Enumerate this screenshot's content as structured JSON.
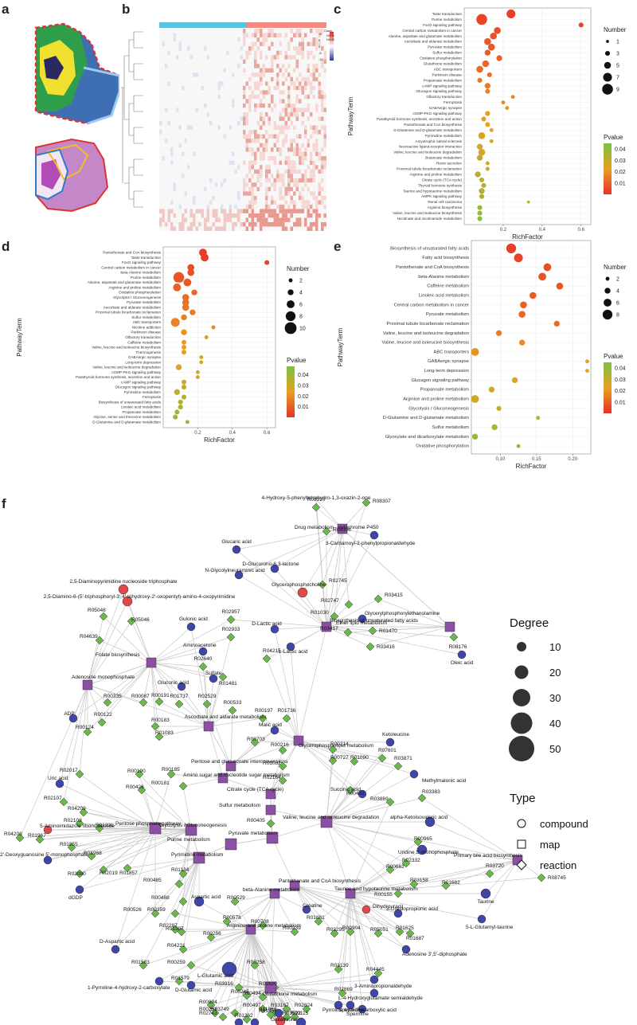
{
  "panels": {
    "a": "a",
    "b": "b",
    "c": "c",
    "d": "d",
    "e": "e",
    "f": "f"
  },
  "heatmap": {
    "legend_title": "Class",
    "legend_items": [
      {
        "label": "ND-A",
        "color": "#5bc0de"
      },
      {
        "label": "ND-B",
        "color": "#f28b82"
      }
    ],
    "scale_ticks": [
      "10",
      "5",
      "0",
      "-5",
      "-10"
    ]
  },
  "chart_data": [
    {
      "id": "c",
      "type": "scatter",
      "xlabel": "RichFactor",
      "ylabel": "PathwayTerm",
      "xlim": [
        0,
        0.65
      ],
      "xticks": [
        "0.2",
        "0.4",
        "0.6"
      ],
      "xtick_values": [
        0.2,
        0.4,
        0.6
      ],
      "pvalue_range": [
        0.0,
        0.045
      ],
      "categories": [
        "Taste transduction",
        "Purine metabolism",
        "FoxO signaling pathway",
        "Central carbon metabolism in cancer",
        "Alanine, aspartate and glutamate metabolism",
        "Ascorbate and aldarate metabolism",
        "Pyruvate metabolism",
        "Sulfur metabolism",
        "Oxidative phosphorylation",
        "Glutathione metabolism",
        "ABC transporters",
        "Parkinson disease",
        "Propanoate metabolism",
        "cAMP signaling pathway",
        "Glucagon signaling pathway",
        "Olfactory transduction",
        "Ferroptosis",
        "GABAergic synapse",
        "cGMP-PKG signaling pathway",
        "Parathyroid hormone synthesis, secretion and action",
        "Pantothenate and CoA biosynthesis",
        "D-Glutamine and D-glutamate metabolism",
        "Pyrimidine metabolism",
        "Amyotrophic lateral sclerosis",
        "Neuroactive ligand-receptor interaction",
        "Valine, leucine and isoleucine degradation",
        "Butanoate metabolism",
        "Renin secretion",
        "Proximal tubule bicarbonate reclamation",
        "Arginine and proline metabolism",
        "Citrate cycle (TCA cycle)",
        "Thyroid hormone synthesis",
        "Taurine and hypotaurine metabolism",
        "AMPK signaling pathway",
        "Renal cell carcinoma",
        "Arginine biosynthesis",
        "Valine, leucine and isoleucine biosynthesis",
        "Nicotinate and nicotinamide metabolism"
      ],
      "x": [
        0.24,
        0.09,
        0.6,
        0.17,
        0.15,
        0.12,
        0.14,
        0.12,
        0.18,
        0.11,
        0.08,
        0.13,
        0.08,
        0.12,
        0.12,
        0.25,
        0.2,
        0.22,
        0.12,
        0.1,
        0.12,
        0.14,
        0.09,
        0.14,
        0.08,
        0.09,
        0.08,
        0.12,
        0.12,
        0.07,
        0.09,
        0.1,
        0.09,
        0.09,
        0.33,
        0.08,
        0.08,
        0.08
      ],
      "number": [
        7,
        9,
        3,
        5,
        5,
        5,
        5,
        4,
        4,
        5,
        5,
        3,
        3,
        4,
        3,
        2,
        2,
        2,
        3,
        3,
        3,
        2,
        5,
        2,
        4,
        5,
        4,
        2,
        2,
        4,
        3,
        3,
        4,
        3,
        1,
        3,
        3,
        3
      ],
      "pvalue": [
        0.003,
        0.004,
        0.004,
        0.006,
        0.007,
        0.008,
        0.008,
        0.009,
        0.01,
        0.011,
        0.012,
        0.012,
        0.014,
        0.015,
        0.016,
        0.017,
        0.018,
        0.02,
        0.021,
        0.022,
        0.023,
        0.024,
        0.025,
        0.026,
        0.027,
        0.028,
        0.029,
        0.029,
        0.03,
        0.031,
        0.032,
        0.033,
        0.034,
        0.035,
        0.036,
        0.038,
        0.04,
        0.042
      ],
      "size_legend": {
        "title": "Number",
        "values": [
          1,
          3,
          5,
          7,
          9
        ]
      },
      "color_legend": {
        "title": "Pvalue",
        "ticks": [
          0.04,
          0.03,
          0.02,
          0.01
        ],
        "tick_labels": [
          "0.04",
          "0.03",
          "0.02",
          "0.01"
        ]
      }
    },
    {
      "id": "d",
      "type": "scatter",
      "xlabel": "RichFactor",
      "ylabel": "PathwayTerm",
      "xlim": [
        0,
        0.65
      ],
      "xticks": [
        "0.2",
        "0.4",
        "0.6"
      ],
      "xtick_values": [
        0.2,
        0.4,
        0.6
      ],
      "pvalue_range": [
        0.0,
        0.048
      ],
      "categories": [
        "Pantothenate and CoA biosynthesis",
        "Taste transduction",
        "FoxO signaling pathway",
        "Central carbon metabolism in cancer",
        "beta-Alanine metabolism",
        "Purine metabolism",
        "Alanine, aspartate and glutamate metabolism",
        "Arginine and proline metabolism",
        "Oxidative phosphorylation",
        "Glycolysis / Gluconeogenesis",
        "Pyruvate metabolism",
        "Ascorbate and aldarate metabolism",
        "Proximal tubule bicarbonate reclamation",
        "Sulfur metabolism",
        "ABC transporters",
        "Nicotine addiction",
        "Parkinson disease",
        "Olfactory transduction",
        "Caffeine metabolism",
        "Valine, leucine and isoleucine biosynthesis",
        "Thermogenesis",
        "GABAergic synapse",
        "Long-term depression",
        "Valine, leucine and isoleucine degradation",
        "cGMP-PKG signaling pathway",
        "Parathyroid hormone synthesis, secretion and action",
        "cAMP signaling pathway",
        "Glucagon signaling pathway",
        "Pyrimidine metabolism",
        "Ferroptosis",
        "Biosynthesis of unsaturated fatty acids",
        "Linoleic acid metabolism",
        "Propanoate metabolism",
        "Glycine, serine and threonine metabolism",
        "D-Glutamine and D-glutamate metabolism"
      ],
      "x": [
        0.23,
        0.24,
        0.6,
        0.16,
        0.16,
        0.09,
        0.14,
        0.08,
        0.18,
        0.13,
        0.13,
        0.13,
        0.17,
        0.12,
        0.07,
        0.29,
        0.12,
        0.25,
        0.12,
        0.12,
        0.12,
        0.22,
        0.22,
        0.09,
        0.2,
        0.2,
        0.12,
        0.12,
        0.08,
        0.12,
        0.1,
        0.1,
        0.08,
        0.07,
        0.14
      ],
      "number": [
        6,
        6,
        3,
        5,
        5,
        9,
        6,
        6,
        4,
        5,
        5,
        5,
        4,
        4,
        7,
        2,
        4,
        2,
        3,
        3,
        3,
        2,
        2,
        4,
        2,
        2,
        3,
        3,
        4,
        3,
        3,
        3,
        3,
        3,
        2
      ],
      "pvalue": [
        0.002,
        0.003,
        0.004,
        0.006,
        0.007,
        0.008,
        0.009,
        0.01,
        0.012,
        0.013,
        0.014,
        0.015,
        0.016,
        0.017,
        0.018,
        0.019,
        0.021,
        0.022,
        0.023,
        0.024,
        0.025,
        0.026,
        0.027,
        0.028,
        0.029,
        0.03,
        0.031,
        0.032,
        0.034,
        0.035,
        0.036,
        0.038,
        0.04,
        0.042,
        0.044
      ],
      "size_legend": {
        "title": "Number",
        "values": [
          2,
          4,
          6,
          8,
          10
        ]
      },
      "color_legend": {
        "title": "Pvalue",
        "ticks": [
          0.04,
          0.03,
          0.02,
          0.01
        ],
        "tick_labels": [
          "0.04",
          "0.03",
          "0.02",
          "0.01"
        ]
      }
    },
    {
      "id": "e",
      "type": "scatter",
      "xlabel": "RichFactor",
      "ylabel": "PathwayTerm",
      "xlim": [
        0.06,
        0.225
      ],
      "xticks": [
        "0.10",
        "0.15",
        "0.20"
      ],
      "xtick_values": [
        0.1,
        0.15,
        0.2
      ],
      "pvalue_range": [
        0.0,
        0.045
      ],
      "categories": [
        "Biosynthesis of unsaturated fatty acids",
        "Fatty acid biosynthesis",
        "Pantothenate and CoA biosynthesis",
        "beta-Alanine metabolism",
        "Caffeine metabolism",
        "Linoleic acid metabolism",
        "Central carbon metabolism in cancer",
        "Pyruvate metabolism",
        "Proximal tubule bicarbonate reclamation",
        "Valine, leucine and isoleucine degradation",
        "Valine, leucine and isoleucine biosynthesis",
        "ABC transporters",
        "GABAergic synapse",
        "Long-term depression",
        "Glucagon signaling pathway",
        "Propanoate metabolism",
        "Arginine and proline metabolism",
        "Glycolysis / Gluconeogenesis",
        "D-Glutamine and D-glutamate metabolism",
        "Sulfur metabolism",
        "Glyoxylate and dicarboxylate metabolism",
        "Oxidative phosphorylation"
      ],
      "x": [
        0.115,
        0.125,
        0.165,
        0.158,
        0.182,
        0.145,
        0.132,
        0.13,
        0.178,
        0.098,
        0.13,
        0.065,
        0.22,
        0.22,
        0.12,
        0.088,
        0.065,
        0.098,
        0.152,
        0.092,
        0.065,
        0.125
      ],
      "number": [
        8,
        7,
        6,
        6,
        5,
        5,
        5,
        5,
        4,
        4,
        4,
        6,
        2,
        2,
        4,
        4,
        6,
        3,
        2,
        4,
        4,
        2
      ],
      "pvalue": [
        0.003,
        0.004,
        0.006,
        0.007,
        0.008,
        0.009,
        0.01,
        0.011,
        0.012,
        0.016,
        0.018,
        0.02,
        0.022,
        0.023,
        0.025,
        0.027,
        0.028,
        0.031,
        0.034,
        0.036,
        0.04,
        0.042
      ],
      "size_legend": {
        "title": "Number",
        "values": [
          2,
          4,
          6,
          8
        ]
      },
      "color_legend": {
        "title": "Pvalue",
        "ticks": [
          0.04,
          0.03,
          0.02,
          0.01
        ],
        "tick_labels": [
          "0.04",
          "0.03",
          "0.02",
          "0.01"
        ]
      }
    }
  ],
  "network": {
    "legend": {
      "degree_title": "Degree",
      "degree_values": [
        "10",
        "20",
        "30",
        "40",
        "50"
      ],
      "type_title": "Type",
      "type_items": [
        "compound",
        "map",
        "reaction"
      ]
    },
    "labels": [
      "4-Hydroxy-5-phenyltetrahydro-1,3-oxazin-2-one",
      "R08310",
      "R08307",
      "Drug metabolism - cytochrome P450",
      "R08306",
      "3-Carbamoyl-2-phenylpropionaldehyde",
      "Glucaric acid",
      "D-Glucurono-6,3-lactone",
      "N-Glycolylneuraminic acid",
      "2,5-Diaminopyrimidine nucleoside triphosphate",
      "2,5-Diamino-6-(5'-triphosphoryl-3',4'-trihydroxy-2'-oxopentyl)-amino-4-oxopyrimidine",
      "Glycerophosphocholine",
      "R02745",
      "R03415",
      "R02747",
      "Glycerylphosphorylethanolamine",
      "D-Lactic acid",
      "R01030",
      "Ether lipid metabolism",
      "Biosynthesis of unsaturated fatty acids",
      "R03417",
      "R01470",
      "R03416",
      "R08176",
      "Oleic acid",
      "R05048",
      "R05046",
      "R04639",
      "Gulonic acid",
      "R02957",
      "Aminoacetone",
      "R02933",
      "R02640",
      "R04215",
      "L-Lactic acid",
      "Sulfate",
      "R01481",
      "Gluconic acid",
      "Folate biosynthesis",
      "Adenosine monophosphate",
      "R00191",
      "R00335",
      "R00087",
      "R01737",
      "R02529",
      "R00533",
      "R00197",
      "R01736",
      "Malic acid",
      "Glycerophospholipid metabolism",
      "ADP",
      "R00122",
      "R00124",
      "R00183",
      "R01083",
      "Ascorbate and aldarate metabolism",
      "R00703",
      "R00216",
      "R00214",
      "R00727",
      "Ketoleucine",
      "R07601",
      "R01090",
      "R03871",
      "Methylmalonic acid",
      "Uric acid",
      "R02017",
      "R02107",
      "R00190",
      "R00185",
      "Pentose and glucuronate interconversions",
      "R00181",
      "Amino sugar and nucleotide sugar metabolism",
      "R00426",
      "R02164",
      "R01082",
      "Citrate cycle (TCA cycle)",
      "Succinic acid",
      "R00432",
      "R03869",
      "R03383",
      "Sulfur metabolism",
      "R04209",
      "R02103",
      "5-Aminoimidazole ribonucleotide",
      "R01231",
      "Pentose phosphate pathway",
      "Glycolysis / Gluconeogenesis",
      "R00405",
      "Valine, leucine and isoleucine degradation",
      "alpha-Ketoisovaleric acid",
      "R04208",
      "R01967",
      "Purine metabolism",
      "Pyruvate metabolism",
      "R00965",
      "Uridine 5'-monophosphate",
      "2'-Deoxyguanosine 5'-monophosphate",
      "R01968",
      "R01855",
      "Pyrimidine metabolism",
      "R02332",
      "R00662",
      "Primary bile acid biosynthesis",
      "R03720",
      "R08745",
      "R02090",
      "R02019",
      "dGDP",
      "R01857",
      "R01134",
      "R00485",
      "R00488",
      "R00526",
      "R00359",
      "Aspartic acid",
      "R00529",
      "Pantothenate and CoA biosynthesis",
      "beta-Alanine metabolism",
      "Taurine and hypotaurine metabolism",
      "R03158",
      "R01682",
      "Taurine",
      "R00155",
      "Dihydrouracil",
      "3-Ureidopropionic acid",
      "5-L-Glutamyl-taurine",
      "R02287",
      "R04221",
      "R01397",
      "R00256",
      "R00578",
      "R00708",
      "R00239",
      "R01881",
      "R03295",
      "R00904",
      "R05051",
      "R01625",
      "R01687",
      "Adenosine 3',5'-diphosphate",
      "Arginine and proline metabolism",
      "Creatine",
      "D-Aspartic acid",
      "R01583",
      "R00259",
      "L-Glutamic acid",
      "R00258",
      "R03139",
      "R04445",
      "3-Aminopropionaldehyde",
      "L-4-Hydroxyglutamate semialdehyde",
      "1-Pyrroline-4-hydroxy-2-carboxylate",
      "R01579",
      "D-Glutamic acid",
      "R03916",
      "R00245",
      "R01920",
      "R00494",
      "Glutathione metabolism",
      "R02869",
      "Pyrroline hydroxycarboxylic acid",
      "Spermidine",
      "Spermine",
      "R00894",
      "R00251",
      "R00497",
      "R11861",
      "R03167",
      "R02824",
      "R02743",
      "R03749",
      "R01257",
      "R03522",
      "Pyroglutamic acid",
      "R01262",
      "R00274",
      "R00115",
      "Glutathione",
      "Oxidized glutathione",
      "gamma-Glutamylalanine"
    ]
  }
}
